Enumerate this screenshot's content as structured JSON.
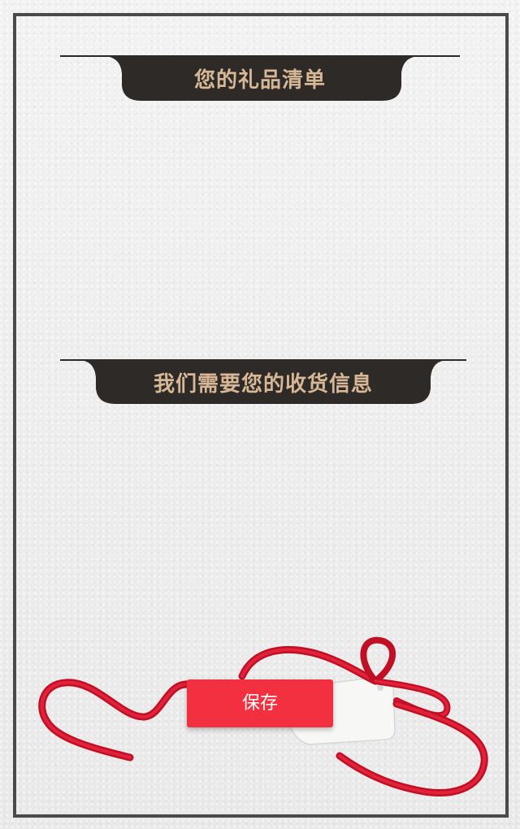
{
  "gift_section": {
    "title": "您的礼品清单"
  },
  "shipping_section": {
    "title": "我们需要您的收货信息"
  },
  "actions": {
    "save_label": "保存"
  },
  "theme": {
    "header_bg": "#2d2a27",
    "header_text": "#d7b795",
    "button_bg": "#f3303f",
    "ribbon": "#d3112a",
    "frame": "#4a4a4a"
  }
}
